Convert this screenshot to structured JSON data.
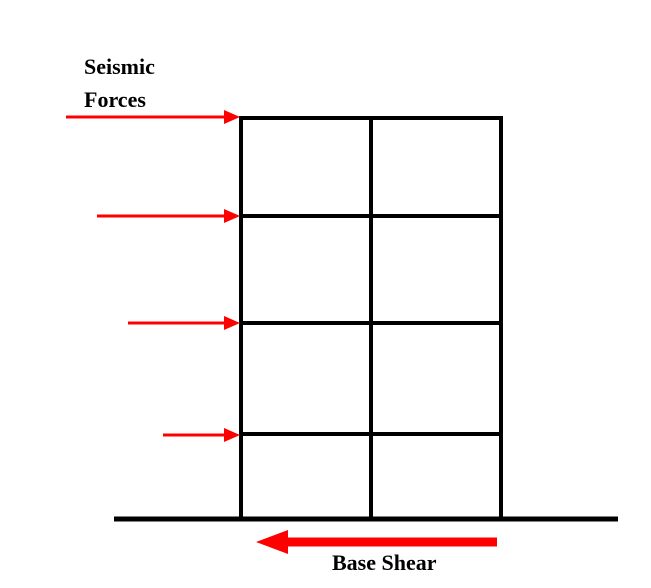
{
  "labels": {
    "seismic_line1": "Seismic",
    "seismic_line2": "Forces",
    "base_shear": "Base Shear"
  },
  "colors": {
    "frame": "#000000",
    "force_arrow": "#ff0000",
    "ground": "#000000"
  },
  "frame": {
    "stories": 4,
    "bays": 2
  },
  "seismic_forces": {
    "count": 4,
    "direction": "right"
  },
  "base_shear_arrow": {
    "direction": "left"
  }
}
